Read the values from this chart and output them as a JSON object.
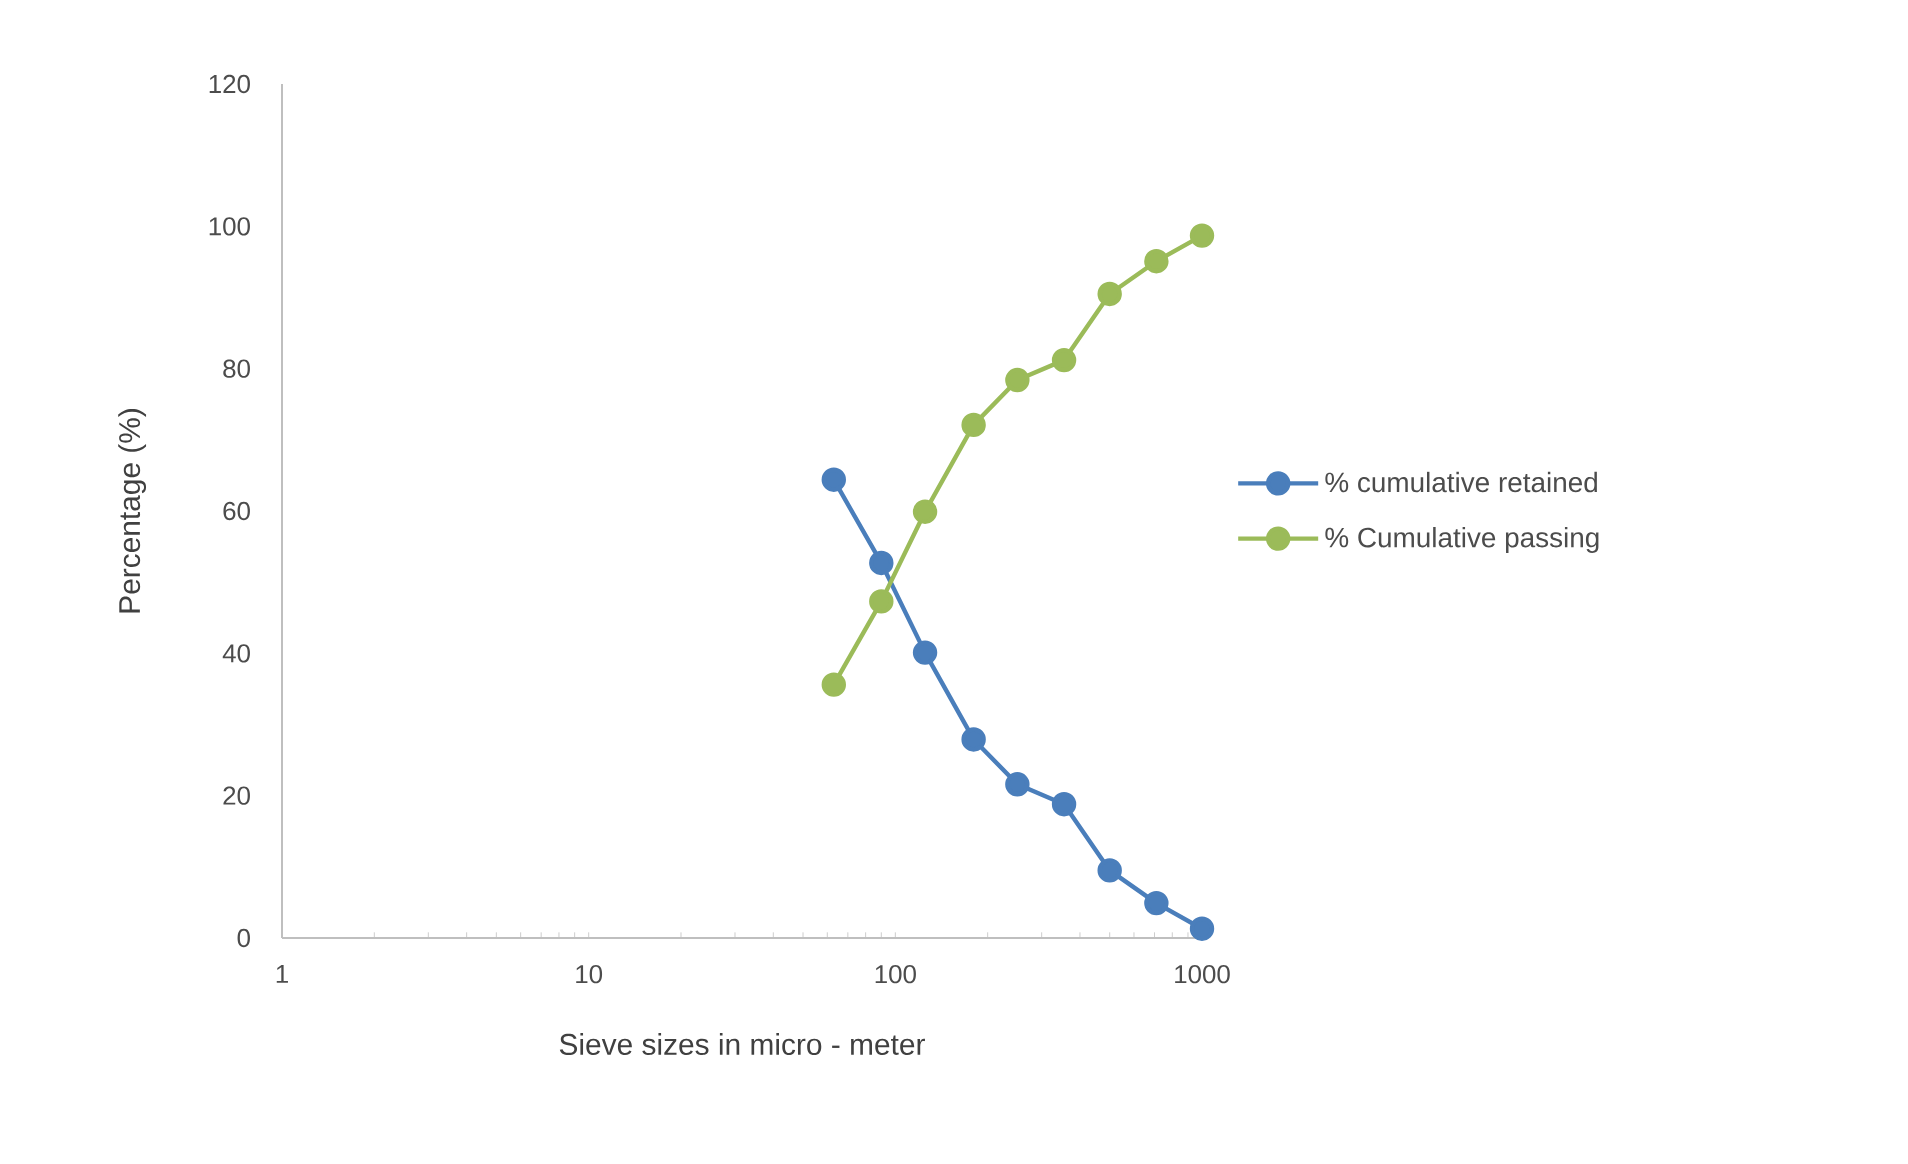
{
  "chart_data": {
    "type": "line",
    "xlabel": "Sieve sizes in  micro - meter",
    "ylabel": "Percentage (%)",
    "x": [
      63,
      90,
      125,
      180,
      250,
      355,
      500,
      710,
      1000
    ],
    "series": [
      {
        "name": "% cumulative retained",
        "color": "#4a7ebb",
        "values": [
          64.4,
          52.7,
          40.1,
          27.9,
          21.6,
          18.8,
          9.5,
          4.9,
          1.3
        ]
      },
      {
        "name": "% Cumulative passing",
        "color": "#9bbb59",
        "values": [
          35.6,
          47.3,
          59.9,
          72.1,
          78.4,
          81.2,
          90.5,
          95.1,
          98.7
        ]
      }
    ],
    "log": "x",
    "xlim": [
      1,
      1000
    ],
    "xticks": [
      1,
      10,
      100,
      1000
    ],
    "ylim": [
      0,
      120
    ],
    "yticks": [
      0,
      20,
      40,
      60,
      80,
      100,
      120
    ],
    "grid": false,
    "legend": "right",
    "marker": "circle",
    "line_style": "solid"
  }
}
